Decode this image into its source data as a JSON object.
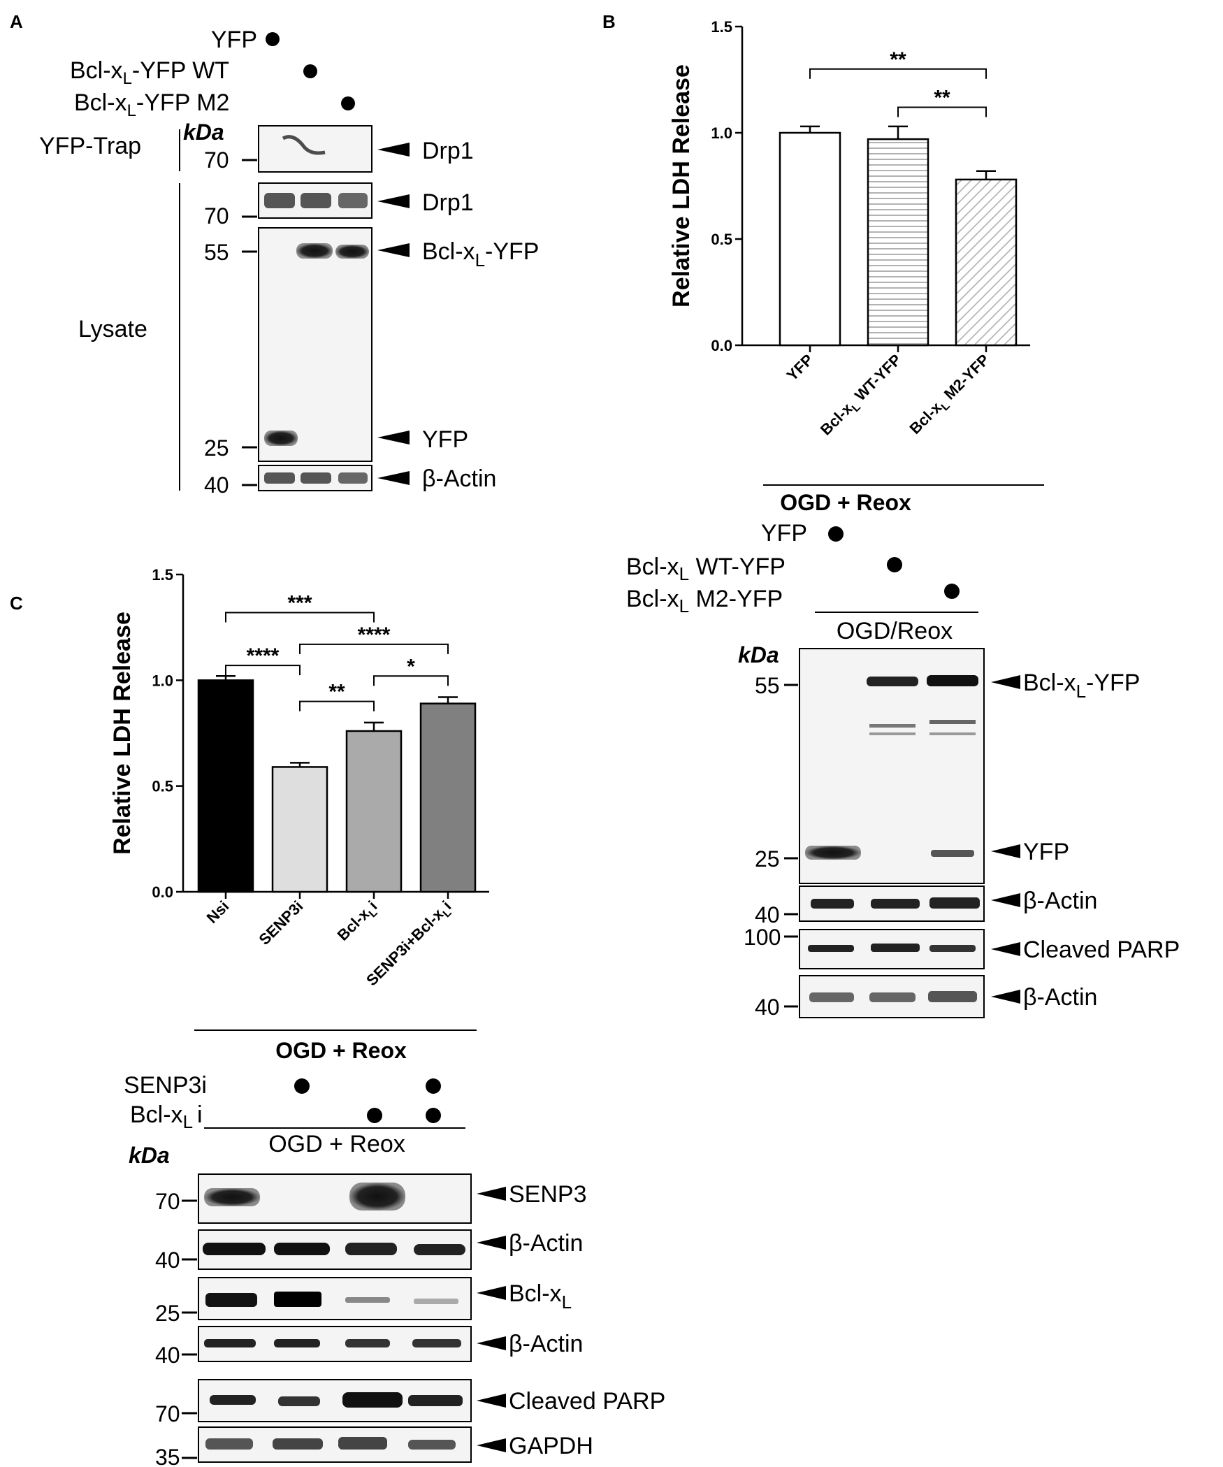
{
  "panels": {
    "a": "A",
    "b": "B",
    "c": "C"
  },
  "panel_a": {
    "conditions": [
      "YFP",
      "Bcl-x",
      "Bcl-x"
    ],
    "condition_suffix": [
      "",
      "-YFP WT",
      "-YFP M2"
    ],
    "sub": "L",
    "kda": "kDa",
    "yfp_trap": "YFP-Trap",
    "lysate": "Lysate",
    "mw": [
      "70",
      "70",
      "55",
      "25",
      "40"
    ],
    "bands": [
      "Drp1",
      "Drp1",
      "Bcl-x",
      "-YFP",
      "YFP",
      "β-Actin"
    ]
  },
  "panel_b_blot": {
    "header": "OGD + Reox",
    "conditions": [
      "YFP",
      "Bcl-x",
      "Bcl-x"
    ],
    "condition_suffix": [
      "",
      " WT-YFP",
      " M2-YFP"
    ],
    "sub": "L",
    "treatment": "OGD/Reox",
    "kda": "kDa",
    "mw": [
      "55",
      "25",
      "40",
      "100",
      "40"
    ],
    "bands": [
      "Bcl-x",
      "-YFP",
      "YFP",
      "β-Actin",
      "Cleaved PARP",
      "β-Actin"
    ]
  },
  "panel_c_blot": {
    "header": "OGD + Reox",
    "conditions": [
      "SENP3i",
      "Bcl-x",
      "i"
    ],
    "sub": "L",
    "treatment": "OGD + Reox",
    "kda": "kDa",
    "mw": [
      "70",
      "40",
      "25",
      "40",
      "70",
      "35"
    ],
    "bands": [
      "SENP3",
      "β-Actin",
      "Bcl-x",
      "β-Actin",
      "Cleaved PARP",
      "GAPDH"
    ]
  },
  "chart_data": [
    {
      "type": "bar",
      "panel": "B",
      "ylabel": "Relative LDH Release",
      "ylim": [
        0,
        1.5
      ],
      "yticks": [
        "0.0",
        "0.5",
        "1.0",
        "1.5"
      ],
      "categories": [
        "YFP",
        "Bcl-xL WT-YFP",
        "Bcl-xL M2-YFP"
      ],
      "category_labels": [
        {
          "main": "YFP",
          "sub": "",
          "tail": ""
        },
        {
          "main": "Bcl-x",
          "sub": "L",
          "tail": " WT-YFP"
        },
        {
          "main": "Bcl-x",
          "sub": "L",
          "tail": " M2-YFP"
        }
      ],
      "values": [
        1.0,
        0.97,
        0.78
      ],
      "errors": [
        0.03,
        0.06,
        0.04
      ],
      "fills": [
        "#ffffff",
        "hstripe",
        "dstripe"
      ],
      "significance": [
        {
          "from": 0,
          "to": 2,
          "label": "**",
          "y": 1.3
        },
        {
          "from": 1,
          "to": 2,
          "label": "**",
          "y": 1.12
        }
      ],
      "group_label": "OGD + Reox"
    },
    {
      "type": "bar",
      "panel": "C",
      "ylabel": "Relative LDH Release",
      "ylim": [
        0,
        1.5
      ],
      "yticks": [
        "0.0",
        "0.5",
        "1.0",
        "1.5"
      ],
      "categories": [
        "Nsi",
        "SENP3i",
        "Bcl-xLi",
        "SENP3i+Bcl-xLi"
      ],
      "category_labels": [
        {
          "main": "Nsi",
          "sub": "",
          "tail": ""
        },
        {
          "main": "SENP3i",
          "sub": "",
          "tail": ""
        },
        {
          "main": "Bcl-x",
          "sub": "L",
          "tail": "i"
        },
        {
          "main": "SENP3i+Bcl-x",
          "sub": "L",
          "tail": "i"
        }
      ],
      "values": [
        1.0,
        0.59,
        0.76,
        0.89
      ],
      "errors": [
        0.02,
        0.02,
        0.04,
        0.03
      ],
      "fills": [
        "#000000",
        "#dedede",
        "#aaaaaa",
        "#808080"
      ],
      "significance": [
        {
          "from": 0,
          "to": 2,
          "label": "***",
          "y": 1.32
        },
        {
          "from": 0,
          "to": 1,
          "label": "****",
          "y": 1.07
        },
        {
          "from": 1,
          "to": 3,
          "label": "****",
          "y": 1.17
        },
        {
          "from": 1,
          "to": 2,
          "label": "**",
          "y": 0.9
        },
        {
          "from": 2,
          "to": 3,
          "label": "*",
          "y": 1.02
        }
      ],
      "group_label": "OGD + Reox"
    }
  ]
}
